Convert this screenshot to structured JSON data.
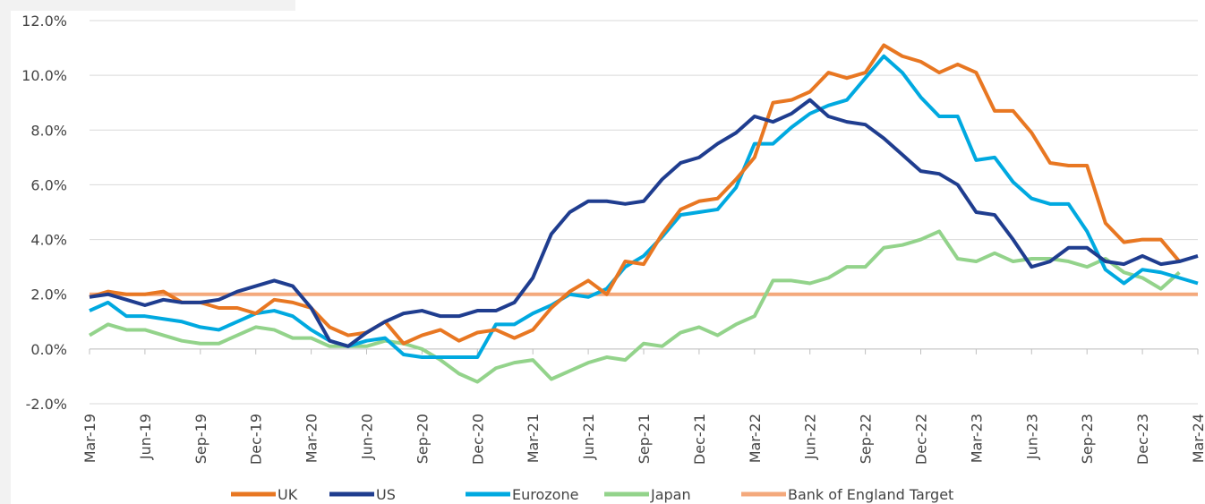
{
  "chart_data": {
    "type": "line",
    "categories": [
      "Mar-19",
      null,
      null,
      "Jun-19",
      null,
      null,
      "Sep-19",
      null,
      null,
      "Dec-19",
      null,
      null,
      "Mar-20",
      null,
      null,
      "Jun-20",
      null,
      null,
      "Sep-20",
      null,
      null,
      "Dec-20",
      null,
      null,
      "Mar-21",
      null,
      null,
      "Jun-21",
      null,
      null,
      "Sep-21",
      null,
      null,
      "Dec-21",
      null,
      null,
      "Mar-22",
      null,
      null,
      "Jun-22",
      null,
      null,
      "Sep-22",
      null,
      null,
      "Dec-22",
      null,
      null,
      "Mar-23",
      null,
      null,
      "Jun-23",
      null,
      null,
      "Sep-23",
      null,
      null,
      "Dec-23",
      null,
      null,
      "Mar-24"
    ],
    "series": [
      {
        "name": "UK",
        "color": "#e87722",
        "values": [
          1.9,
          2.1,
          2.0,
          2.0,
          2.1,
          1.7,
          1.7,
          1.5,
          1.5,
          1.3,
          1.8,
          1.7,
          1.5,
          0.8,
          0.5,
          0.6,
          1.0,
          0.2,
          0.5,
          0.7,
          0.3,
          0.6,
          0.7,
          0.4,
          0.7,
          1.5,
          2.1,
          2.5,
          2.0,
          3.2,
          3.1,
          4.2,
          5.1,
          5.4,
          5.5,
          6.2,
          7.0,
          9.0,
          9.1,
          9.4,
          10.1,
          9.9,
          10.1,
          11.1,
          10.7,
          10.5,
          10.1,
          10.4,
          10.1,
          8.7,
          8.7,
          7.9,
          6.8,
          6.7,
          6.7,
          4.6,
          3.9,
          4.0,
          4.0,
          3.2,
          null
        ]
      },
      {
        "name": "US",
        "color": "#1f3d8f",
        "values": [
          1.9,
          2.0,
          1.8,
          1.6,
          1.8,
          1.7,
          1.7,
          1.8,
          2.1,
          2.3,
          2.5,
          2.3,
          1.5,
          0.3,
          0.1,
          0.6,
          1.0,
          1.3,
          1.4,
          1.2,
          1.2,
          1.4,
          1.4,
          1.7,
          2.6,
          4.2,
          5.0,
          5.4,
          5.4,
          5.3,
          5.4,
          6.2,
          6.8,
          7.0,
          7.5,
          7.9,
          8.5,
          8.3,
          8.6,
          9.1,
          8.5,
          8.3,
          8.2,
          7.7,
          7.1,
          6.5,
          6.4,
          6.0,
          5.0,
          4.9,
          4.0,
          3.0,
          3.2,
          3.7,
          3.7,
          3.2,
          3.1,
          3.4,
          3.1,
          3.2,
          3.4
        ]
      },
      {
        "name": "Eurozone",
        "color": "#00a9e0",
        "values": [
          1.4,
          1.7,
          1.2,
          1.2,
          1.1,
          1.0,
          0.8,
          0.7,
          1.0,
          1.3,
          1.4,
          1.2,
          0.7,
          0.3,
          0.1,
          0.3,
          0.4,
          -0.2,
          -0.3,
          -0.3,
          -0.3,
          -0.3,
          0.9,
          0.9,
          1.3,
          1.6,
          2.0,
          1.9,
          2.2,
          3.0,
          3.4,
          4.1,
          4.9,
          5.0,
          5.1,
          5.9,
          7.5,
          7.5,
          8.1,
          8.6,
          8.9,
          9.1,
          9.9,
          10.7,
          10.1,
          9.2,
          8.5,
          8.5,
          6.9,
          7.0,
          6.1,
          5.5,
          5.3,
          5.3,
          4.3,
          2.9,
          2.4,
          2.9,
          2.8,
          2.6,
          2.4
        ]
      },
      {
        "name": "Japan",
        "color": "#93d38b",
        "values": [
          0.5,
          0.9,
          0.7,
          0.7,
          0.5,
          0.3,
          0.2,
          0.2,
          0.5,
          0.8,
          0.7,
          0.4,
          0.4,
          0.1,
          0.1,
          0.1,
          0.3,
          0.2,
          0.0,
          -0.4,
          -0.9,
          -1.2,
          -0.7,
          -0.5,
          -0.4,
          -1.1,
          -0.8,
          -0.5,
          -0.3,
          -0.4,
          0.2,
          0.1,
          0.6,
          0.8,
          0.5,
          0.9,
          1.2,
          2.5,
          2.5,
          2.4,
          2.6,
          3.0,
          3.0,
          3.7,
          3.8,
          4.0,
          4.3,
          3.3,
          3.2,
          3.5,
          3.2,
          3.3,
          3.3,
          3.2,
          3.0,
          3.3,
          2.8,
          2.6,
          2.2,
          2.8,
          null
        ]
      },
      {
        "name": "Bank of England Target",
        "color": "#f4a97c",
        "values": [
          2,
          2,
          2,
          2,
          2,
          2,
          2,
          2,
          2,
          2,
          2,
          2,
          2,
          2,
          2,
          2,
          2,
          2,
          2,
          2,
          2,
          2,
          2,
          2,
          2,
          2,
          2,
          2,
          2,
          2,
          2,
          2,
          2,
          2,
          2,
          2,
          2,
          2,
          2,
          2,
          2,
          2,
          2,
          2,
          2,
          2,
          2,
          2,
          2,
          2,
          2,
          2,
          2,
          2,
          2,
          2,
          2,
          2,
          2,
          2,
          2
        ]
      }
    ],
    "ylim": [
      -2,
      12
    ],
    "yticks": [
      {
        "value": -2,
        "label": "-2.0%"
      },
      {
        "value": 0,
        "label": "0.0%"
      },
      {
        "value": 2,
        "label": "2.0%"
      },
      {
        "value": 4,
        "label": "4.0%"
      },
      {
        "value": 6,
        "label": "6.0%"
      },
      {
        "value": 8,
        "label": "8.0%"
      },
      {
        "value": 10,
        "label": "10.0%"
      },
      {
        "value": 12,
        "label": "12.0%"
      }
    ],
    "grid": true
  }
}
